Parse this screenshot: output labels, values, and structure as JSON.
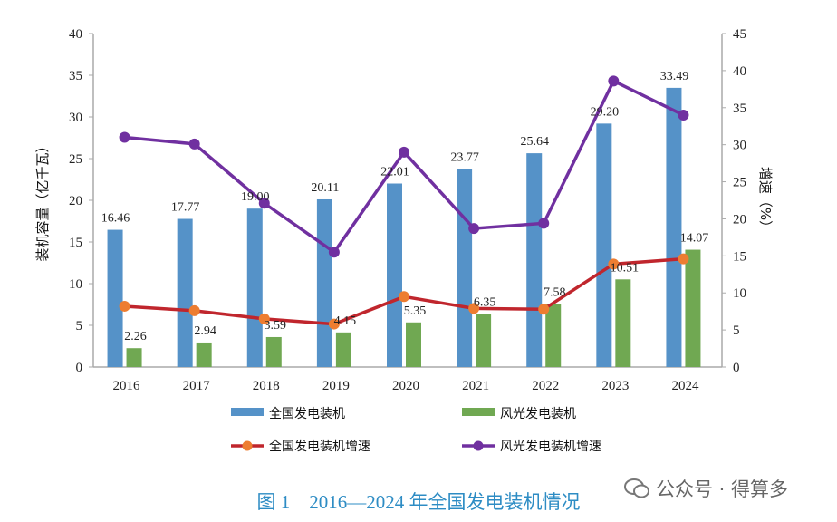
{
  "chart_data": {
    "type": "bar+line",
    "categories": [
      "2016",
      "2017",
      "2018",
      "2019",
      "2020",
      "2021",
      "2022",
      "2023",
      "2024"
    ],
    "ylabel": "装机容量（亿千瓦）",
    "y2label": "增速（%）",
    "ylim": [
      0,
      40
    ],
    "y2lim": [
      0,
      45
    ],
    "yticks": [
      0,
      5,
      10,
      15,
      20,
      25,
      30,
      35,
      40
    ],
    "y2ticks": [
      0,
      5,
      10,
      15,
      20,
      25,
      30,
      35,
      40,
      45
    ],
    "legend_position": "bottom",
    "series": [
      {
        "name": "全国发电装机",
        "type": "bar",
        "axis": "left",
        "color": "#5592c8",
        "values": [
          16.46,
          17.77,
          19.0,
          20.11,
          22.01,
          23.77,
          25.64,
          29.2,
          33.49
        ],
        "labels": [
          "16.46",
          "17.77",
          "19.00",
          "20.11",
          "22.01",
          "23.77",
          "25.64",
          "29.20",
          "33.49"
        ]
      },
      {
        "name": "风光发电装机",
        "type": "bar",
        "axis": "left",
        "color": "#70a852",
        "values": [
          2.26,
          2.94,
          3.59,
          4.15,
          5.35,
          6.35,
          7.58,
          10.51,
          14.07
        ],
        "labels": [
          "2.26",
          "2.94",
          "3.59",
          "4.15",
          "5.35",
          "6.35",
          "7.58",
          "10.51",
          "14.07"
        ]
      },
      {
        "name": "全国发电装机增速",
        "type": "line",
        "axis": "right",
        "color": "#c0262d",
        "marker_color": "#ed7d31",
        "values": [
          8.2,
          7.6,
          6.5,
          5.8,
          9.5,
          7.9,
          7.8,
          13.9,
          14.6
        ]
      },
      {
        "name": "风光发电装机增速",
        "type": "line",
        "axis": "right",
        "color": "#7030a0",
        "marker_color": "#7030a0",
        "values": [
          31.0,
          30.1,
          22.1,
          15.5,
          29.0,
          18.7,
          19.4,
          38.6,
          34.0
        ]
      }
    ]
  },
  "caption": "图 1　2016—2024 年全国发电装机情况",
  "watermark": "公众号 · 得算多"
}
